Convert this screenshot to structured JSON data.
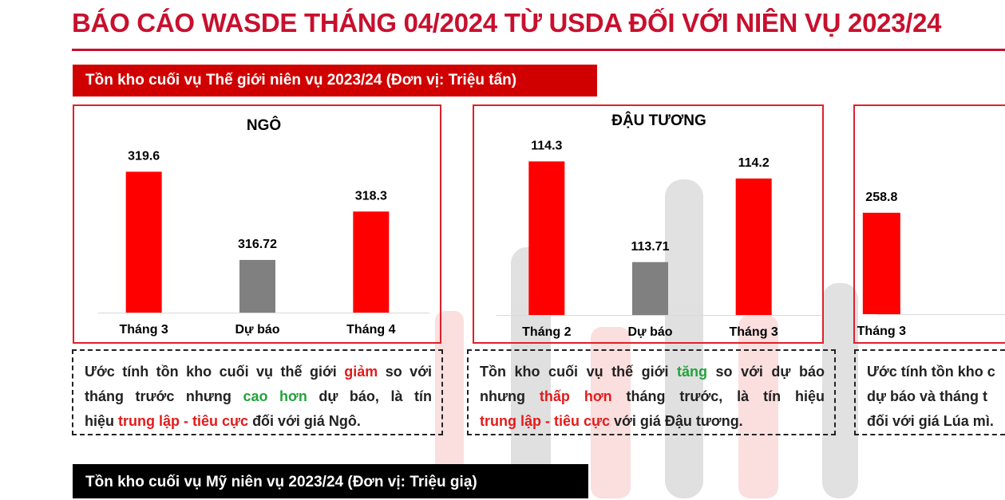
{
  "header": {
    "title": "BÁO CÁO WASDE THÁNG 04/2024 TỪ USDA ĐỐI VỚI NIÊN VỤ 2023/24"
  },
  "sections": [
    "Tồn kho cuối vụ Thế giới niên vụ 2023/24 (Đơn vị: Triệu tấn)",
    "Tồn kho cuối vụ Mỹ niên vụ 2023/24 (Đơn vị: Triệu giạ)"
  ],
  "chart_data": [
    {
      "type": "bar",
      "title": "NGÔ",
      "categories": [
        "Tháng 3",
        "Dự báo",
        "Tháng 4"
      ],
      "values": [
        319.6,
        316.72,
        318.3
      ],
      "colors": [
        "#ff0000",
        "#808080",
        "#ff0000"
      ],
      "ylim": [
        315,
        320
      ]
    },
    {
      "type": "bar",
      "title": "ĐẬU TƯƠNG",
      "categories": [
        "Tháng 2",
        "Dự báo",
        "Tháng 3"
      ],
      "values": [
        114.3,
        113.71,
        114.2
      ],
      "colors": [
        "#ff0000",
        "#808080",
        "#ff0000"
      ],
      "ylim": [
        113.4,
        114.4
      ]
    },
    {
      "type": "bar",
      "categories": [
        "Tháng 3"
      ],
      "values": [
        258.8
      ],
      "colors": [
        "#ff0000"
      ],
      "ylim": [
        258.5,
        259
      ]
    }
  ],
  "notes": [
    {
      "lines": [
        [
          {
            "text": "Ước tính tồn kho cuối vụ thế giới "
          },
          {
            "text": "giảm",
            "color": "#e31b1b"
          },
          {
            "text": " so với"
          }
        ],
        [
          {
            "text": "tháng trước nhưng "
          },
          {
            "text": "cao hơn",
            "color": "#22a33a"
          },
          {
            "text": " dự báo, là tín"
          }
        ],
        [
          {
            "text": "hiệu "
          },
          {
            "text": "trung lập - tiêu cực",
            "color": "#e31b1b"
          },
          {
            "text": " đối với giá Ngô."
          }
        ]
      ]
    },
    {
      "lines": [
        [
          {
            "text": "Tồn kho cuối vụ thế giới "
          },
          {
            "text": "tăng",
            "color": "#22a33a"
          },
          {
            "text": " so với dự báo"
          }
        ],
        [
          {
            "text": "nhưng "
          },
          {
            "text": "thấp hơn",
            "color": "#e31b1b"
          },
          {
            "text": " tháng trước, là tín hiệu"
          }
        ],
        [
          {
            "text": "trung lập - tiêu cực",
            "color": "#e31b1b"
          },
          {
            "text": " với giá Đậu tương."
          }
        ]
      ]
    },
    {
      "lines": [
        [
          {
            "text": "Ước tính tồn kho c"
          }
        ],
        [
          {
            "text": "dự báo và tháng t"
          }
        ],
        [
          {
            "text": "đối với giá Lúa mì."
          }
        ]
      ]
    }
  ]
}
